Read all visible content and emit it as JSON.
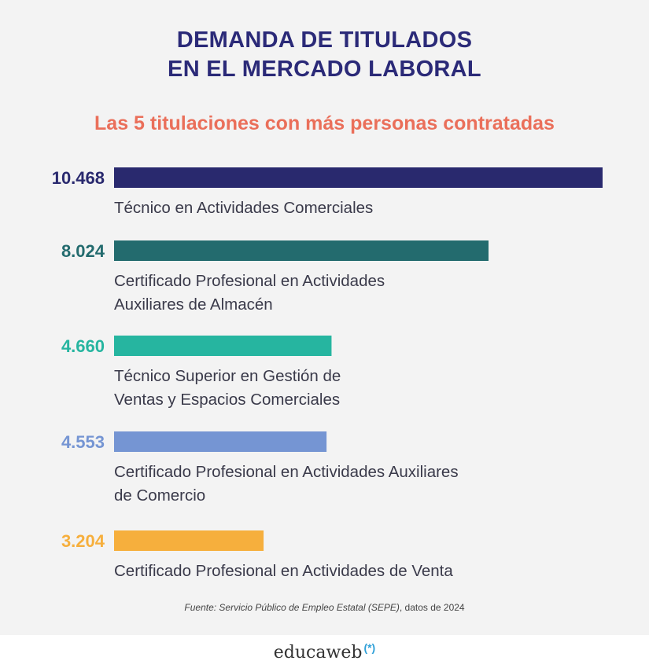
{
  "title_line1": "DEMANDA DE TITULADOS",
  "title_line2": "EN EL MERCADO LABORAL",
  "subtitle": "Las 5 titulaciones con más personas contratadas",
  "source_italic": "Fuente: Servicio Público de Empleo Estatal (SEPE)",
  "source_rest": ", datos de 2024",
  "brand": "educaweb",
  "brand_mark": "(*)",
  "chart_data": {
    "type": "bar",
    "orientation": "horizontal",
    "title": "DEMANDA DE TITULADOS EN EL MERCADO LABORAL",
    "subtitle": "Las 5 titulaciones con más personas contratadas",
    "categories": [
      "Técnico en Actividades Comerciales",
      "Certificado Profesional en Actividades Auxiliares de Almacén",
      "Técnico Superior en Gestión de Ventas y Espacios Comerciales",
      "Certificado Profesional en Actividades Auxiliares de Comercio",
      "Certificado Profesional en Actividades de Venta"
    ],
    "label_lines": [
      [
        "Técnico en Actividades Comerciales"
      ],
      [
        "Certificado Profesional en Actividades",
        "Auxiliares de Almacén"
      ],
      [
        "Técnico Superior en Gestión de",
        "Ventas y Espacios Comerciales"
      ],
      [
        "Certificado Profesional en Actividades Auxiliares",
        "de Comercio"
      ],
      [
        "Certificado Profesional en Actividades de Venta"
      ]
    ],
    "values": [
      10468,
      8024,
      4660,
      4553,
      3204
    ],
    "value_labels": [
      "10.468",
      "8.024",
      "4.660",
      "4.553",
      "3.204"
    ],
    "colors": [
      "#29296e",
      "#236b6e",
      "#26b5a0",
      "#7595d3",
      "#f6af3d"
    ],
    "xlim": [
      0,
      10468
    ],
    "grid": false,
    "legend": "none"
  }
}
